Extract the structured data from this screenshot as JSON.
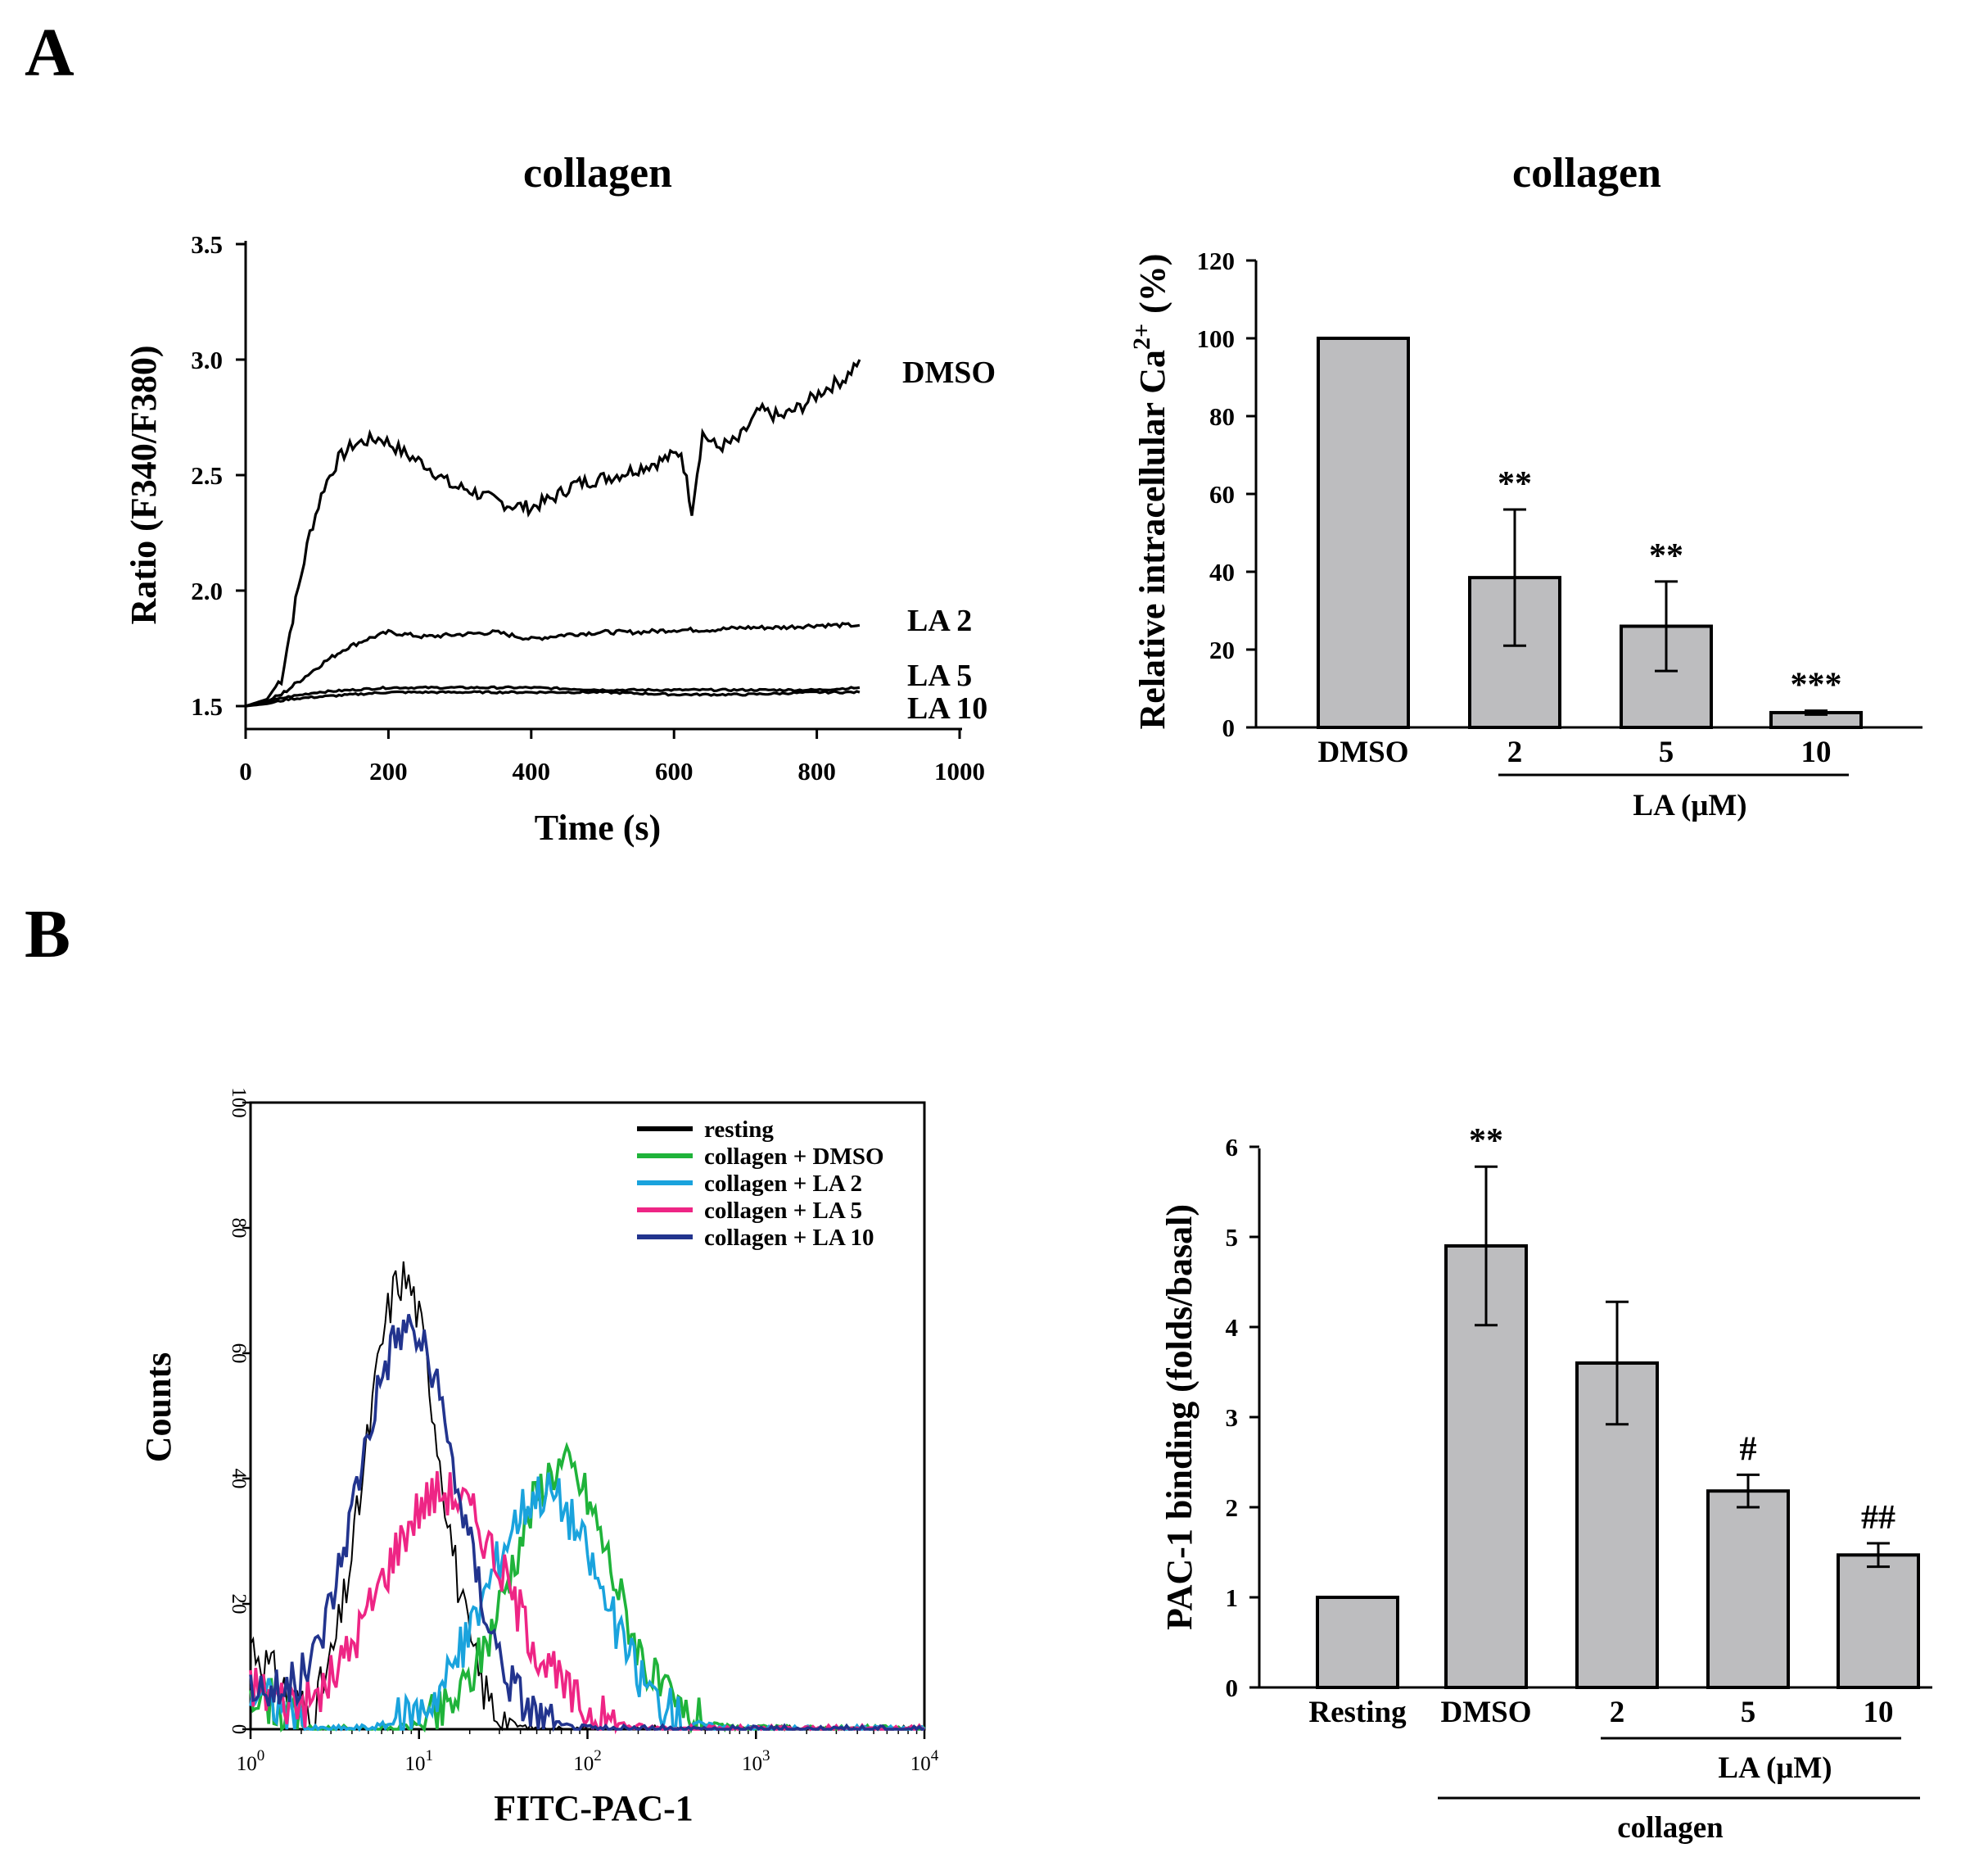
{
  "panel_labels": {
    "a": "A",
    "b": "B"
  },
  "chart_data": [
    {
      "type": "line",
      "title": "collagen",
      "xlabel": "Time (s)",
      "ylabel": "Ratio (F340/F380)",
      "xlim": [
        0,
        1000
      ],
      "ylim": [
        1.5,
        3.5
      ],
      "xticks": [
        "0",
        "200",
        "400",
        "600",
        "800",
        "1000"
      ],
      "yticks": [
        "1.5",
        "2.0",
        "2.5",
        "3.0",
        "3.5"
      ],
      "series": [
        {
          "name": "DMSO",
          "label": "DMSO",
          "x": [
            0,
            30,
            50,
            70,
            90,
            110,
            130,
            150,
            170,
            190,
            210,
            230,
            250,
            270,
            290,
            310,
            340,
            370,
            400,
            430,
            460,
            490,
            520,
            550,
            580,
            610,
            625,
            640,
            660,
            690,
            720,
            750,
            780,
            810,
            840,
            860
          ],
          "y": [
            1.5,
            1.53,
            1.62,
            1.95,
            2.25,
            2.45,
            2.57,
            2.63,
            2.65,
            2.66,
            2.62,
            2.58,
            2.55,
            2.5,
            2.45,
            2.44,
            2.4,
            2.37,
            2.36,
            2.4,
            2.46,
            2.48,
            2.5,
            2.53,
            2.56,
            2.6,
            2.35,
            2.68,
            2.62,
            2.65,
            2.78,
            2.75,
            2.8,
            2.87,
            2.92,
            3.0
          ]
        },
        {
          "name": "LA 2",
          "label": "LA 2",
          "x": [
            0,
            30,
            50,
            80,
            110,
            140,
            170,
            200,
            250,
            300,
            350,
            400,
            450,
            500,
            550,
            600,
            650,
            700,
            750,
            800,
            860
          ],
          "y": [
            1.5,
            1.52,
            1.55,
            1.62,
            1.69,
            1.75,
            1.79,
            1.82,
            1.8,
            1.81,
            1.82,
            1.79,
            1.81,
            1.82,
            1.82,
            1.83,
            1.83,
            1.84,
            1.84,
            1.85,
            1.85
          ]
        },
        {
          "name": "LA 5",
          "label": "LA 5",
          "x": [
            0,
            30,
            60,
            100,
            150,
            200,
            300,
            400,
            500,
            600,
            700,
            800,
            860
          ],
          "y": [
            1.5,
            1.52,
            1.54,
            1.56,
            1.57,
            1.58,
            1.58,
            1.58,
            1.57,
            1.57,
            1.57,
            1.57,
            1.58
          ]
        },
        {
          "name": "LA 10",
          "label": "LA 10",
          "x": [
            0,
            30,
            60,
            100,
            150,
            200,
            300,
            400,
            500,
            600,
            700,
            800,
            860
          ],
          "y": [
            1.5,
            1.51,
            1.53,
            1.54,
            1.55,
            1.56,
            1.56,
            1.56,
            1.56,
            1.55,
            1.55,
            1.56,
            1.56
          ]
        }
      ]
    },
    {
      "type": "bar",
      "title": "collagen",
      "ylabel_main": "Relative intracellular Ca",
      "ylabel_sup": "2+",
      "ylabel_suffix": "(%)",
      "ylim": [
        0,
        120
      ],
      "yticks": [
        "0",
        "20",
        "40",
        "60",
        "80",
        "100",
        "120"
      ],
      "categories": [
        "DMSO",
        "2",
        "5",
        "10"
      ],
      "values": [
        100,
        38.5,
        26,
        3.8
      ],
      "errors": [
        0,
        17.5,
        11.5,
        0.5
      ],
      "significance": [
        "",
        "**",
        "**",
        "***"
      ],
      "group_label": "LA (μM)"
    },
    {
      "type": "line",
      "subtype": "flow-cytometry-histogram",
      "xlabel": "FITC-PAC-1",
      "ylabel": "Counts",
      "xscale": "log",
      "xlim": [
        1,
        10000
      ],
      "ylim": [
        0,
        100
      ],
      "xticks": [
        {
          "base": "10",
          "exp": "0"
        },
        {
          "base": "10",
          "exp": "1"
        },
        {
          "base": "10",
          "exp": "2"
        },
        {
          "base": "10",
          "exp": "3"
        },
        {
          "base": "10",
          "exp": "4"
        }
      ],
      "yticks": [
        "0",
        "20",
        "40",
        "60",
        "80",
        "100"
      ],
      "legend_position": "top-right",
      "series": [
        {
          "name": "resting",
          "color": "#000000",
          "peak_x": 8,
          "peak_y": 72,
          "width": 0.22
        },
        {
          "name": "collagen + DMSO",
          "color": "#1fb33a",
          "peak_x": 70,
          "peak_y": 42,
          "width": 0.3
        },
        {
          "name": "collagen + LA 2",
          "color": "#1aa3dd",
          "peak_x": 55,
          "peak_y": 38,
          "width": 0.33
        },
        {
          "name": "collagen + LA 5",
          "color": "#ee2585",
          "peak_x": 14,
          "peak_y": 38,
          "width": 0.38
        },
        {
          "name": "collagen + LA 10",
          "color": "#22348e",
          "peak_x": 8.5,
          "peak_y": 64,
          "width": 0.3
        }
      ]
    },
    {
      "type": "bar",
      "ylabel": "PAC-1 binding (folds/basal)",
      "ylim": [
        0,
        6
      ],
      "yticks": [
        "0",
        "1",
        "2",
        "3",
        "4",
        "5",
        "6"
      ],
      "categories": [
        "Resting",
        "DMSO",
        "2",
        "5",
        "10"
      ],
      "values": [
        1.0,
        4.9,
        3.6,
        2.18,
        1.47
      ],
      "errors": [
        0,
        0.88,
        0.68,
        0.18,
        0.13
      ],
      "significance": [
        "",
        "**",
        "",
        "#",
        "##"
      ],
      "group_label": "LA (μM)",
      "outer_group_label": "collagen"
    }
  ]
}
